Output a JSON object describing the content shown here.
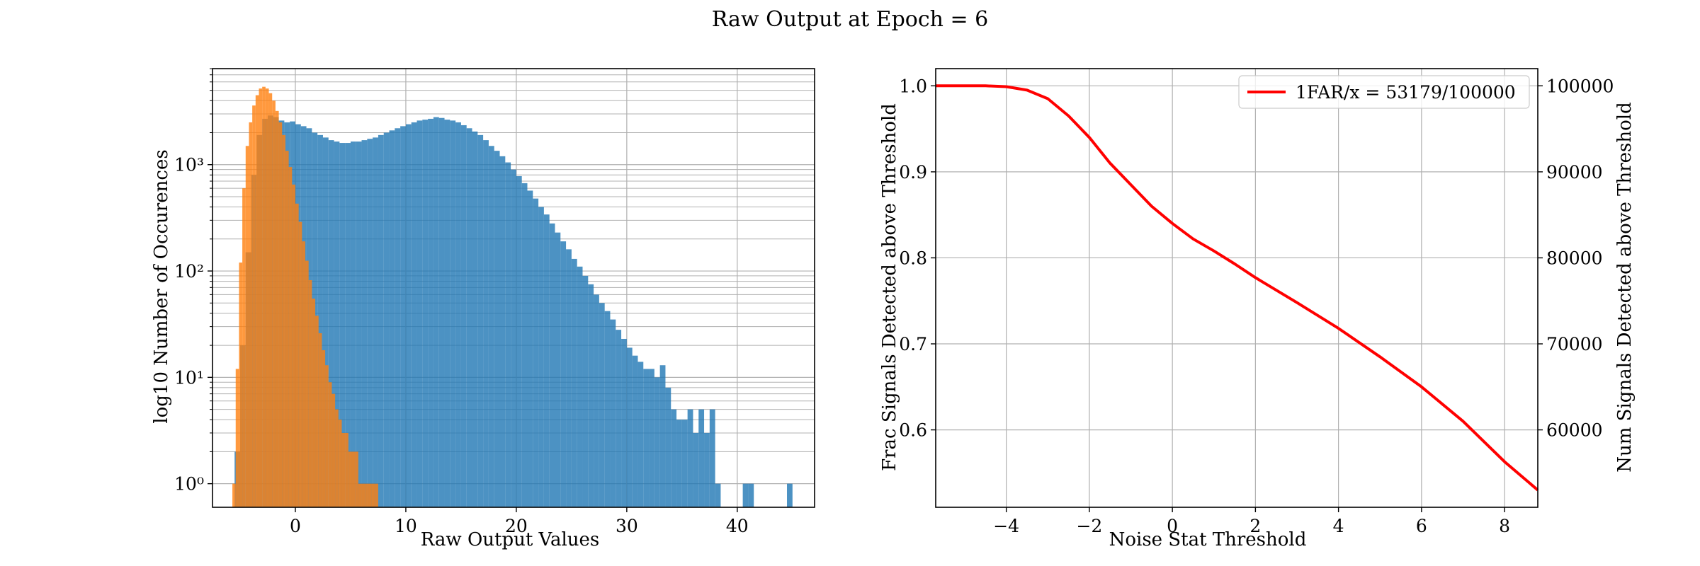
{
  "figure": {
    "title": "Raw Output at Epoch = 6",
    "colors": {
      "signal": "#1f77b4",
      "noise": "#ff7f0e",
      "curve": "#ff0000",
      "grid": "#b0b0b0"
    }
  },
  "chart_data": [
    {
      "type": "histogram",
      "xlabel": "Raw Output Values",
      "ylabel": "log10 Number of Occurences",
      "xlim": [
        -7.5,
        47
      ],
      "ylim": [
        0.6,
        8000
      ],
      "yscale": "log",
      "grid": true,
      "xticks": [
        0,
        10,
        20,
        30,
        40
      ],
      "yticks": [
        {
          "value": 1,
          "label": "10⁰"
        },
        {
          "value": 10,
          "label": "10¹"
        },
        {
          "value": 100,
          "label": "10²"
        },
        {
          "value": 1000,
          "label": "10³"
        }
      ],
      "series": [
        {
          "role": "signal",
          "bin_width": 0.5,
          "bins": [
            [
              -5.5,
              2
            ],
            [
              -5.0,
              20
            ],
            [
              -4.5,
              150
            ],
            [
              -4.0,
              800
            ],
            [
              -3.5,
              1900
            ],
            [
              -3.0,
              2700
            ],
            [
              -2.5,
              2900
            ],
            [
              -2.0,
              2800
            ],
            [
              -1.5,
              2600
            ],
            [
              -1.0,
              2500
            ],
            [
              -0.5,
              2550
            ],
            [
              0.0,
              2400
            ],
            [
              0.5,
              2300
            ],
            [
              1.0,
              2200
            ],
            [
              1.5,
              2000
            ],
            [
              2.0,
              1900
            ],
            [
              2.5,
              1800
            ],
            [
              3.0,
              1700
            ],
            [
              3.5,
              1650
            ],
            [
              4.0,
              1600
            ],
            [
              4.5,
              1600
            ],
            [
              5.0,
              1650
            ],
            [
              5.5,
              1650
            ],
            [
              6.0,
              1700
            ],
            [
              6.5,
              1750
            ],
            [
              7.0,
              1800
            ],
            [
              7.5,
              1900
            ],
            [
              8.0,
              2000
            ],
            [
              8.5,
              2100
            ],
            [
              9.0,
              2200
            ],
            [
              9.5,
              2300
            ],
            [
              10.0,
              2400
            ],
            [
              10.5,
              2500
            ],
            [
              11.0,
              2600
            ],
            [
              11.5,
              2650
            ],
            [
              12.0,
              2700
            ],
            [
              12.5,
              2800
            ],
            [
              13.0,
              2750
            ],
            [
              13.5,
              2650
            ],
            [
              14.0,
              2600
            ],
            [
              14.5,
              2500
            ],
            [
              15.0,
              2350
            ],
            [
              15.5,
              2200
            ],
            [
              16.0,
              2050
            ],
            [
              16.5,
              1900
            ],
            [
              17.0,
              1700
            ],
            [
              17.5,
              1500
            ],
            [
              18.0,
              1350
            ],
            [
              18.5,
              1200
            ],
            [
              19.0,
              1050
            ],
            [
              19.5,
              900
            ],
            [
              20.0,
              780
            ],
            [
              20.5,
              670
            ],
            [
              21.0,
              570
            ],
            [
              21.5,
              480
            ],
            [
              22.0,
              400
            ],
            [
              22.5,
              340
            ],
            [
              23.0,
              280
            ],
            [
              23.5,
              230
            ],
            [
              24.0,
              190
            ],
            [
              24.5,
              160
            ],
            [
              25.0,
              130
            ],
            [
              25.5,
              110
            ],
            [
              26.0,
              90
            ],
            [
              26.5,
              75
            ],
            [
              27.0,
              60
            ],
            [
              27.5,
              50
            ],
            [
              28.0,
              42
            ],
            [
              28.5,
              35
            ],
            [
              29.0,
              28
            ],
            [
              29.5,
              23
            ],
            [
              30.0,
              19
            ],
            [
              30.5,
              16
            ],
            [
              31.0,
              14
            ],
            [
              31.5,
              12
            ],
            [
              32.0,
              12
            ],
            [
              32.5,
              10
            ],
            [
              33.0,
              13
            ],
            [
              33.5,
              8
            ],
            [
              34.0,
              5
            ],
            [
              34.5,
              4
            ],
            [
              35.0,
              4
            ],
            [
              35.5,
              5
            ],
            [
              36.0,
              3
            ],
            [
              36.5,
              5
            ],
            [
              37.0,
              3
            ],
            [
              37.5,
              5
            ],
            [
              38.0,
              1
            ],
            [
              40.5,
              1
            ],
            [
              41.0,
              1
            ],
            [
              44.5,
              1
            ]
          ]
        },
        {
          "role": "noise",
          "bin_width": 0.3,
          "bins": [
            [
              -5.7,
              1
            ],
            [
              -5.4,
              12
            ],
            [
              -5.1,
              120
            ],
            [
              -4.8,
              600
            ],
            [
              -4.5,
              1500
            ],
            [
              -4.2,
              2500
            ],
            [
              -3.9,
              3600
            ],
            [
              -3.6,
              4500
            ],
            [
              -3.3,
              5200
            ],
            [
              -3.0,
              5400
            ],
            [
              -2.7,
              5200
            ],
            [
              -2.4,
              4700
            ],
            [
              -2.1,
              4000
            ],
            [
              -1.8,
              3200
            ],
            [
              -1.5,
              2500
            ],
            [
              -1.2,
              1900
            ],
            [
              -0.9,
              1350
            ],
            [
              -0.6,
              950
            ],
            [
              -0.3,
              650
            ],
            [
              0.0,
              430
            ],
            [
              0.3,
              290
            ],
            [
              0.6,
              190
            ],
            [
              0.9,
              125
            ],
            [
              1.2,
              82
            ],
            [
              1.5,
              55
            ],
            [
              1.8,
              38
            ],
            [
              2.1,
              26
            ],
            [
              2.4,
              18
            ],
            [
              2.7,
              13
            ],
            [
              3.0,
              9
            ],
            [
              3.3,
              7
            ],
            [
              3.6,
              5
            ],
            [
              3.9,
              4
            ],
            [
              4.2,
              3
            ],
            [
              4.5,
              3
            ],
            [
              4.8,
              2
            ],
            [
              5.1,
              2
            ],
            [
              5.4,
              2
            ],
            [
              5.7,
              1
            ],
            [
              6.0,
              1
            ],
            [
              6.3,
              1
            ],
            [
              6.6,
              1
            ],
            [
              6.9,
              1
            ],
            [
              7.2,
              1
            ]
          ]
        }
      ]
    },
    {
      "type": "line",
      "xlabel": "Noise Stat Threshold",
      "ylabel": "Frac Signals Detected above Threshold",
      "ylabel_right": "Num Signals Detected above Threshold",
      "xlim": [
        -5.7,
        8.8
      ],
      "ylim": [
        0.51,
        1.02
      ],
      "grid": true,
      "legend_position": "top-right",
      "xticks": [
        -4,
        -2,
        0,
        2,
        4,
        6,
        8
      ],
      "yticks": [
        0.6,
        0.7,
        0.8,
        0.9,
        1.0
      ],
      "yticks_right": [
        60000,
        70000,
        80000,
        90000,
        100000
      ],
      "series": [
        {
          "name": "1FAR/x = 53179/100000",
          "x": [
            -5.7,
            -5.0,
            -4.5,
            -4.0,
            -3.5,
            -3.0,
            -2.5,
            -2.0,
            -1.5,
            -1.0,
            -0.5,
            0.0,
            0.5,
            1.0,
            1.5,
            2.0,
            3.0,
            4.0,
            5.0,
            6.0,
            7.0,
            8.0,
            8.8
          ],
          "y": [
            1.0,
            1.0,
            1.0,
            0.999,
            0.995,
            0.985,
            0.965,
            0.94,
            0.91,
            0.885,
            0.86,
            0.84,
            0.822,
            0.808,
            0.793,
            0.777,
            0.748,
            0.718,
            0.685,
            0.65,
            0.61,
            0.563,
            0.53
          ]
        }
      ]
    }
  ]
}
